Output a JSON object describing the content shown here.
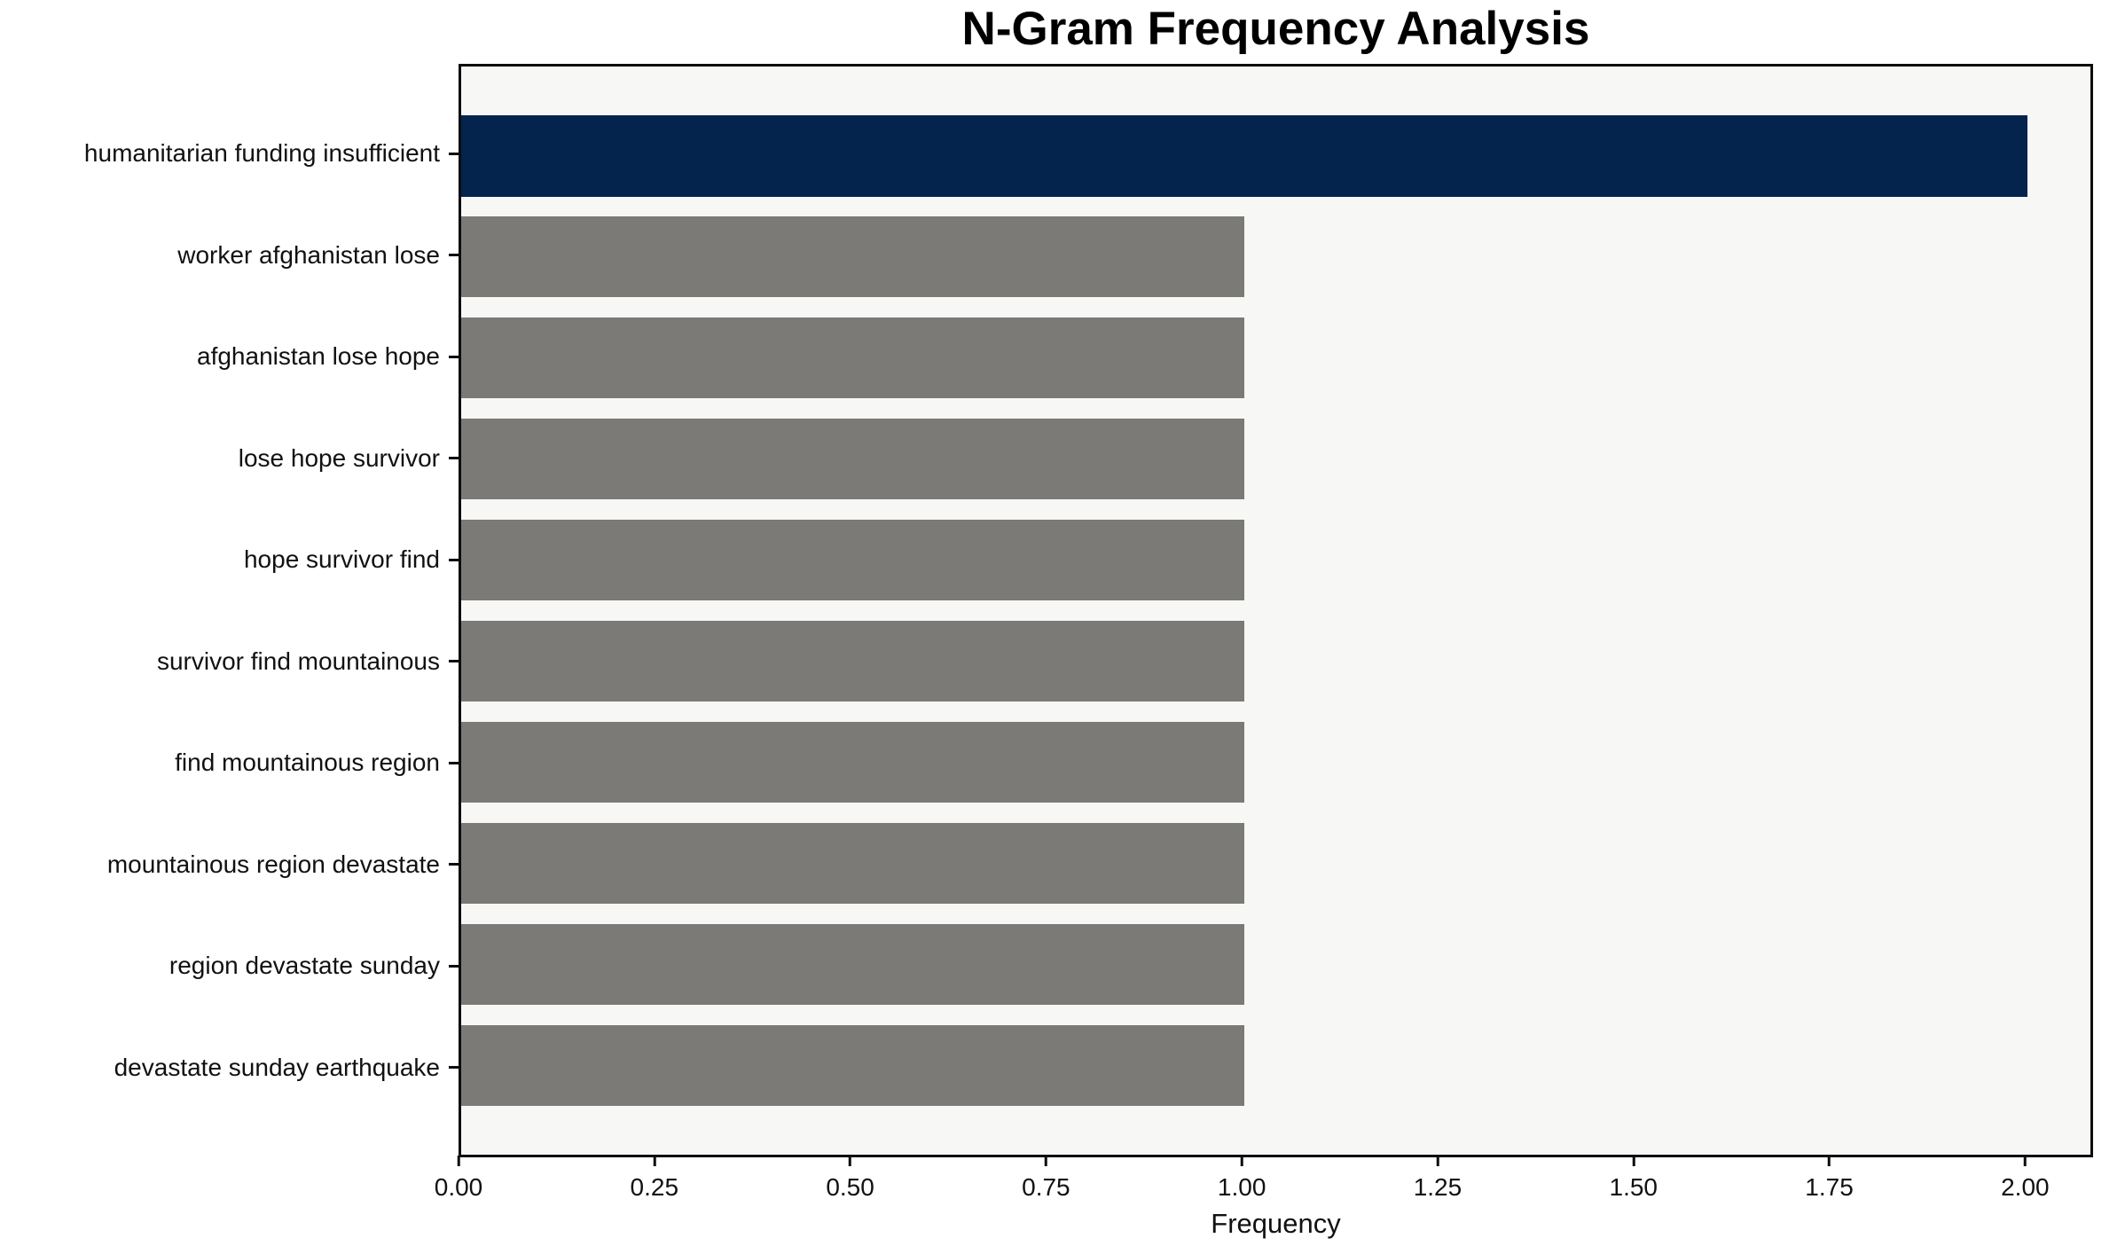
{
  "chart_data": {
    "type": "bar",
    "orientation": "horizontal",
    "title": "N-Gram Frequency Analysis",
    "xlabel": "Frequency",
    "ylabel": "",
    "categories": [
      "humanitarian funding insufficient",
      "worker afghanistan lose",
      "afghanistan lose hope",
      "lose hope survivor",
      "hope survivor find",
      "survivor find mountainous",
      "find mountainous region",
      "mountainous region devastate",
      "region devastate sunday",
      "devastate sunday earthquake"
    ],
    "values": [
      2,
      1,
      1,
      1,
      1,
      1,
      1,
      1,
      1,
      1
    ],
    "highlight_index": 0,
    "xlim": [
      0,
      2.08
    ],
    "xtick_values": [
      0,
      0.25,
      0.5,
      0.75,
      1.0,
      1.25,
      1.5,
      1.75,
      2.0
    ],
    "xtick_labels": [
      "0.00",
      "0.25",
      "0.50",
      "0.75",
      "1.00",
      "1.25",
      "1.50",
      "1.75",
      "2.00"
    ],
    "grid": false,
    "legend": null,
    "colors": {
      "highlight_bar": "#04234d",
      "default_bar": "#7b7a76",
      "plot_background": "#f7f7f6",
      "figure_background": "#ffffff",
      "spine": "#0d0d0d",
      "text": "#111111"
    }
  }
}
